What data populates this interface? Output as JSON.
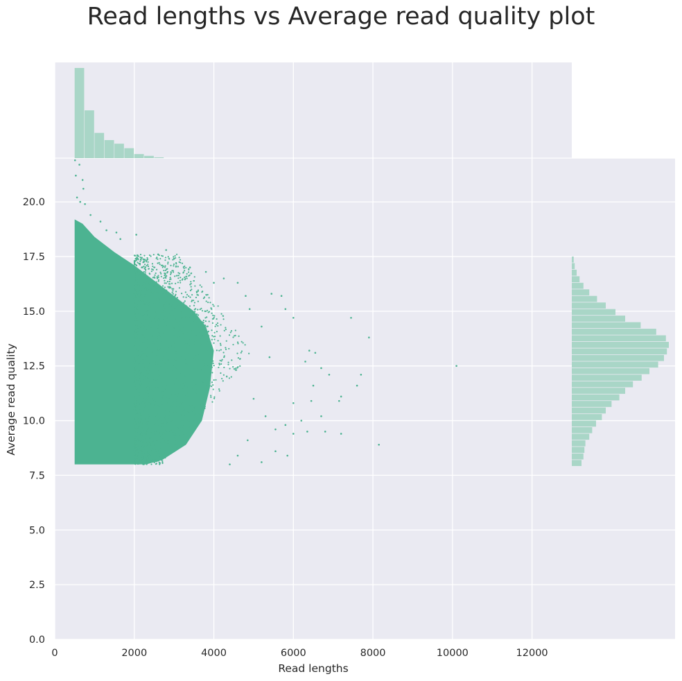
{
  "chart_data": {
    "type": "scatter",
    "title": "Read lengths vs Average read quality plot",
    "xlabel": "Read lengths",
    "ylabel": "Average read quality",
    "xlim": [
      0,
      13000
    ],
    "ylim": [
      0,
      22
    ],
    "xticks": [
      "0",
      "2000",
      "4000",
      "6000",
      "8000",
      "10000",
      "12000"
    ],
    "yticks": [
      "0.0",
      "2.5",
      "5.0",
      "7.5",
      "10.0",
      "12.5",
      "15.0",
      "17.5",
      "20.0"
    ],
    "grid": true,
    "colors": {
      "points": "#4cb391",
      "hist": "#a9d6c7",
      "background": "#eaeaf2",
      "grid": "#ffffff"
    },
    "x_marginal_hist": {
      "bin_edges": [
        500,
        750,
        1000,
        1250,
        1500,
        1750,
        2000,
        2250,
        2500,
        2750
      ],
      "relative_counts": [
        1.0,
        0.53,
        0.28,
        0.2,
        0.16,
        0.11,
        0.045,
        0.025,
        0.008
      ]
    },
    "y_marginal_hist": {
      "bins": [
        {
          "y": 8.05,
          "rel": 0.1
        },
        {
          "y": 8.35,
          "rel": 0.12
        },
        {
          "y": 8.65,
          "rel": 0.13
        },
        {
          "y": 8.95,
          "rel": 0.14
        },
        {
          "y": 9.25,
          "rel": 0.18
        },
        {
          "y": 9.55,
          "rel": 0.21
        },
        {
          "y": 9.85,
          "rel": 0.25
        },
        {
          "y": 10.15,
          "rel": 0.31
        },
        {
          "y": 10.45,
          "rel": 0.35
        },
        {
          "y": 10.75,
          "rel": 0.41
        },
        {
          "y": 11.05,
          "rel": 0.49
        },
        {
          "y": 11.35,
          "rel": 0.55
        },
        {
          "y": 11.65,
          "rel": 0.63
        },
        {
          "y": 11.95,
          "rel": 0.72
        },
        {
          "y": 12.25,
          "rel": 0.8
        },
        {
          "y": 12.55,
          "rel": 0.89
        },
        {
          "y": 12.85,
          "rel": 0.95
        },
        {
          "y": 13.15,
          "rel": 0.98
        },
        {
          "y": 13.45,
          "rel": 1.0
        },
        {
          "y": 13.75,
          "rel": 0.97
        },
        {
          "y": 14.05,
          "rel": 0.87
        },
        {
          "y": 14.35,
          "rel": 0.71
        },
        {
          "y": 14.65,
          "rel": 0.55
        },
        {
          "y": 14.95,
          "rel": 0.45
        },
        {
          "y": 15.25,
          "rel": 0.35
        },
        {
          "y": 15.55,
          "rel": 0.26
        },
        {
          "y": 15.85,
          "rel": 0.18
        },
        {
          "y": 16.15,
          "rel": 0.12
        },
        {
          "y": 16.45,
          "rel": 0.08
        },
        {
          "y": 16.75,
          "rel": 0.05
        },
        {
          "y": 17.05,
          "rel": 0.03
        },
        {
          "y": 17.35,
          "rel": 0.02
        }
      ]
    },
    "points": [
      [
        510,
        21.9
      ],
      [
        620,
        21.7
      ],
      [
        530,
        21.2
      ],
      [
        700,
        21.0
      ],
      [
        720,
        20.6
      ],
      [
        560,
        20.2
      ],
      [
        640,
        20.0
      ],
      [
        760,
        19.9
      ],
      [
        900,
        19.4
      ],
      [
        1150,
        19.1
      ],
      [
        1300,
        18.7
      ],
      [
        1550,
        18.6
      ],
      [
        1650,
        18.3
      ],
      [
        2050,
        18.5
      ],
      [
        2600,
        17.6
      ],
      [
        2800,
        17.8
      ],
      [
        3000,
        17.4
      ],
      [
        3400,
        17.0
      ],
      [
        3800,
        16.8
      ],
      [
        4000,
        16.3
      ],
      [
        4250,
        16.5
      ],
      [
        4600,
        16.3
      ],
      [
        4800,
        15.7
      ],
      [
        5450,
        15.8
      ],
      [
        5700,
        15.7
      ],
      [
        5800,
        15.1
      ],
      [
        6000,
        14.7
      ],
      [
        7450,
        14.7
      ],
      [
        7900,
        13.8
      ],
      [
        6400,
        13.2
      ],
      [
        6550,
        13.1
      ],
      [
        6300,
        12.7
      ],
      [
        6700,
        12.4
      ],
      [
        6900,
        12.1
      ],
      [
        7700,
        12.1
      ],
      [
        7600,
        11.6
      ],
      [
        6500,
        11.6
      ],
      [
        7200,
        11.1
      ],
      [
        7150,
        10.9
      ],
      [
        6000,
        10.8
      ],
      [
        6450,
        10.9
      ],
      [
        6200,
        10.0
      ],
      [
        6700,
        10.2
      ],
      [
        5800,
        9.8
      ],
      [
        5550,
        9.6
      ],
      [
        6000,
        9.4
      ],
      [
        6350,
        9.5
      ],
      [
        6800,
        9.5
      ],
      [
        7200,
        9.4
      ],
      [
        8150,
        8.9
      ],
      [
        5550,
        8.6
      ],
      [
        5850,
        8.4
      ],
      [
        5200,
        8.1
      ],
      [
        4400,
        8.0
      ],
      [
        10100,
        12.5
      ],
      [
        4900,
        15.1
      ],
      [
        5200,
        14.3
      ],
      [
        5400,
        12.9
      ],
      [
        5000,
        11.0
      ],
      [
        5300,
        10.2
      ],
      [
        4850,
        9.1
      ],
      [
        4600,
        8.4
      ]
    ]
  }
}
